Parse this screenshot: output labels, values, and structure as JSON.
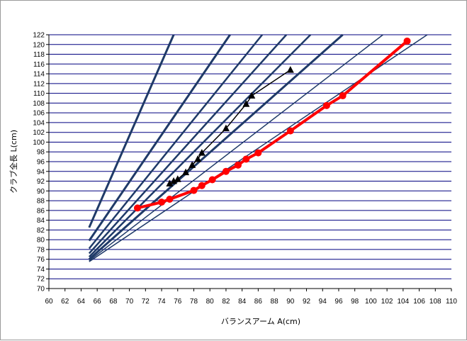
{
  "chart_data": {
    "type": "line",
    "title": "",
    "xlabel": "バランスアーム A(cm)",
    "ylabel": "クラブ全長 L(cm)",
    "xlim": [
      60,
      110
    ],
    "ylim": [
      70,
      122
    ],
    "x_ticks": [
      "60",
      "62",
      "64",
      "66",
      "68",
      "70",
      "72",
      "74",
      "76",
      "78",
      "80",
      "82",
      "84",
      "86",
      "88",
      "90",
      "92",
      "94",
      "96",
      "98",
      "100",
      "102",
      "104",
      "106",
      "108",
      "110"
    ],
    "y_ticks": [
      "70",
      "72",
      "74",
      "76",
      "78",
      "80",
      "82",
      "84",
      "86",
      "88",
      "90",
      "92",
      "94",
      "96",
      "98",
      "100",
      "102",
      "104",
      "106",
      "108",
      "110",
      "112",
      "114",
      "116",
      "118",
      "120",
      "122"
    ],
    "grid": "horizontal",
    "legend": "none",
    "colors": {
      "grid": "#000080",
      "guide": "#1f3a68",
      "red_series": "#ff0000",
      "black_series": "#000000"
    },
    "guide_lines": [
      {
        "x": [
          65,
          75.5
        ],
        "y": [
          82.5,
          122
        ],
        "width": 3
      },
      {
        "x": [
          65,
          82.5
        ],
        "y": [
          79.8,
          122
        ],
        "width": 3
      },
      {
        "x": [
          65,
          86.5
        ],
        "y": [
          78.2,
          122
        ],
        "width": 2.5
      },
      {
        "x": [
          65,
          89.5
        ],
        "y": [
          77.2,
          122
        ],
        "width": 2.5
      },
      {
        "x": [
          65,
          92.5
        ],
        "y": [
          76.5,
          122
        ],
        "width": 2.5
      },
      {
        "x": [
          65,
          96.5
        ],
        "y": [
          76.0,
          122
        ],
        "width": 3
      },
      {
        "x": [
          65,
          101.5
        ],
        "y": [
          75.7,
          122
        ],
        "width": 1.5
      },
      {
        "x": [
          65,
          107
        ],
        "y": [
          75.5,
          122
        ],
        "width": 1.5
      }
    ],
    "series": [
      {
        "marker": "circle",
        "x": [
          71,
          74,
          75,
          78,
          79,
          80.3,
          82,
          83.5,
          84.5,
          86,
          90,
          94.5,
          96.5,
          104.5
        ],
        "y": [
          86.5,
          87.7,
          88.3,
          90.1,
          91.1,
          92.3,
          94,
          95.3,
          96.5,
          97.8,
          102.3,
          107.5,
          109.5,
          120.7
        ]
      },
      {
        "marker": "triangle",
        "x": [
          75,
          75.5,
          76,
          77,
          77.8,
          78.5,
          79,
          82,
          84.5,
          85.2,
          90
        ],
        "y": [
          91.5,
          92,
          92.4,
          93.8,
          95.3,
          96.5,
          97.8,
          102.8,
          107.8,
          109.5,
          114.8
        ]
      }
    ]
  }
}
